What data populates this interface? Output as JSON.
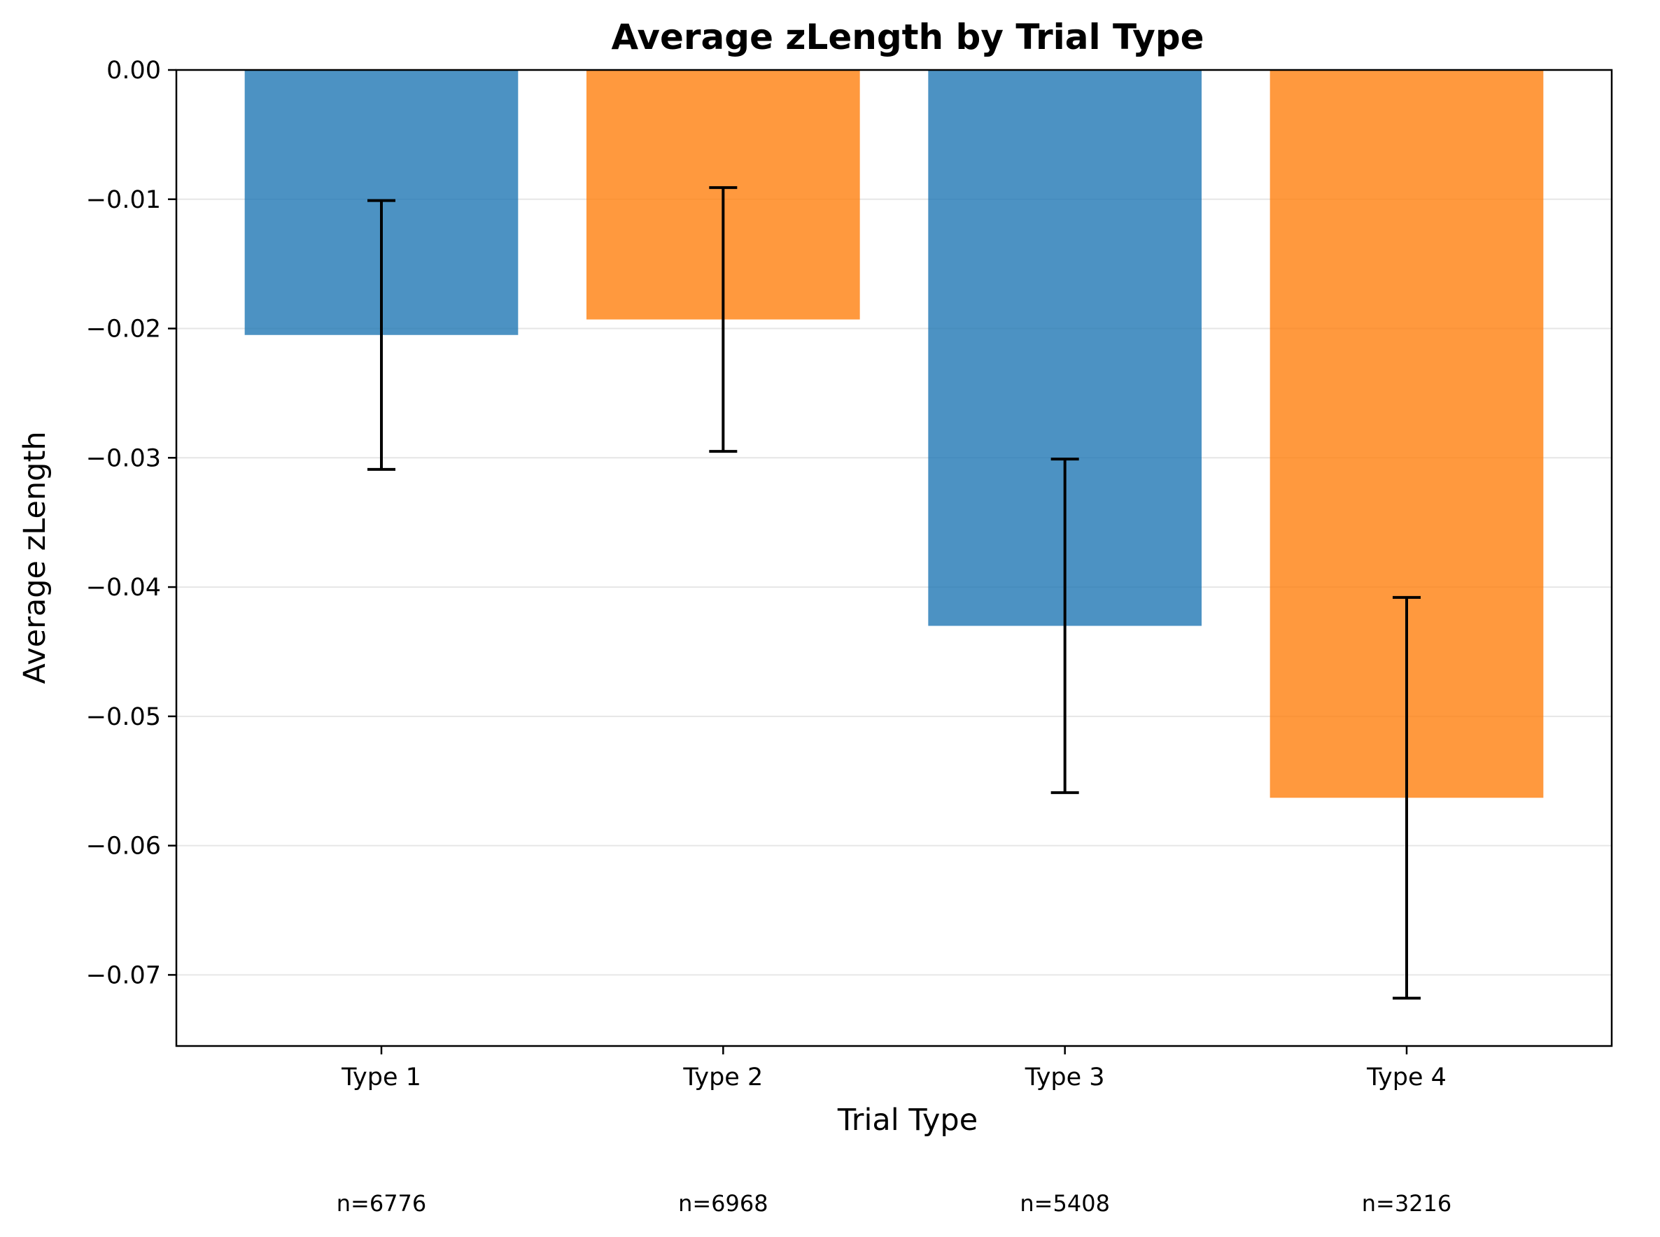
{
  "chart_data": {
    "type": "bar",
    "title": "Average zLength by Trial Type",
    "xlabel": "Trial Type",
    "ylabel": "Average zLength",
    "categories": [
      "Type 1",
      "Type 2",
      "Type 3",
      "Type 4"
    ],
    "values": [
      -0.0205,
      -0.0193,
      -0.043,
      -0.0563
    ],
    "errors": [
      0.0104,
      0.0102,
      0.0129,
      0.0155
    ],
    "sample_sizes": [
      "n=6776",
      "n=6968",
      "n=5408",
      "n=3216"
    ],
    "bar_colors": [
      "#1f77b4",
      "#ff7f0e",
      "#1f77b4",
      "#ff7f0e"
    ],
    "bar_opacity": 0.8,
    "ylim": [
      -0.0755,
      0.0
    ],
    "yticks": [
      0.0,
      -0.01,
      -0.02,
      -0.03,
      -0.04,
      -0.05,
      -0.06,
      -0.07
    ],
    "ytick_labels": [
      "0.00",
      "−0.01",
      "−0.02",
      "−0.03",
      "−0.04",
      "−0.05",
      "−0.06",
      "−0.07"
    ],
    "grid": "y-axis only",
    "grid_color": "#e6e6e6",
    "error_color": "#000000",
    "legend": "none"
  }
}
